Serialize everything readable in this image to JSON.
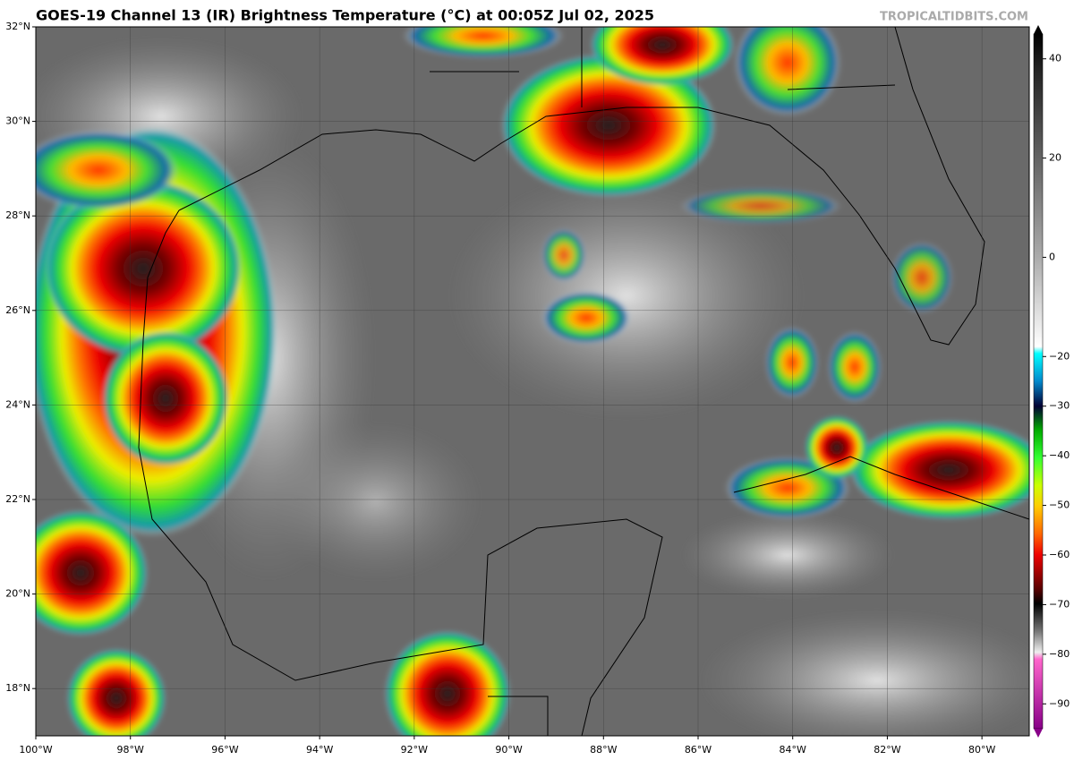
{
  "header": {
    "title": "GOES-19 Channel 13 (IR) Brightness Temperature (°C) at 00:05Z Jul 02, 2025",
    "watermark": "TROPICALTIDBITS.COM"
  },
  "map": {
    "xlim": [
      -100,
      -79
    ],
    "ylim": [
      17,
      32
    ],
    "xticks": [
      {
        "value": -100,
        "label": "100°W"
      },
      {
        "value": -98,
        "label": "98°W"
      },
      {
        "value": -96,
        "label": "96°W"
      },
      {
        "value": -94,
        "label": "94°W"
      },
      {
        "value": -92,
        "label": "92°W"
      },
      {
        "value": -90,
        "label": "90°W"
      },
      {
        "value": -88,
        "label": "88°W"
      },
      {
        "value": -86,
        "label": "86°W"
      },
      {
        "value": -84,
        "label": "84°W"
      },
      {
        "value": -82,
        "label": "82°W"
      },
      {
        "value": -80,
        "label": "80°W"
      }
    ],
    "yticks": [
      {
        "value": 18,
        "label": "18°N"
      },
      {
        "value": 20,
        "label": "20°N"
      },
      {
        "value": 22,
        "label": "22°N"
      },
      {
        "value": 24,
        "label": "24°N"
      },
      {
        "value": 26,
        "label": "26°N"
      },
      {
        "value": 28,
        "label": "28°N"
      },
      {
        "value": 30,
        "label": "30°N"
      },
      {
        "value": 32,
        "label": "32°N"
      }
    ]
  },
  "colorbar": {
    "lim": [
      -95,
      45
    ],
    "ticks": [
      40,
      20,
      0,
      {
        "value": -20,
        "label": "−20"
      },
      {
        "value": -30,
        "label": "−30"
      },
      {
        "value": -40,
        "label": "−40"
      },
      {
        "value": -50,
        "label": "−50"
      },
      {
        "value": -60,
        "label": "−60"
      },
      {
        "value": -70,
        "label": "−70"
      },
      {
        "value": -80,
        "label": "−80"
      },
      {
        "value": -90,
        "label": "−90"
      }
    ]
  }
}
